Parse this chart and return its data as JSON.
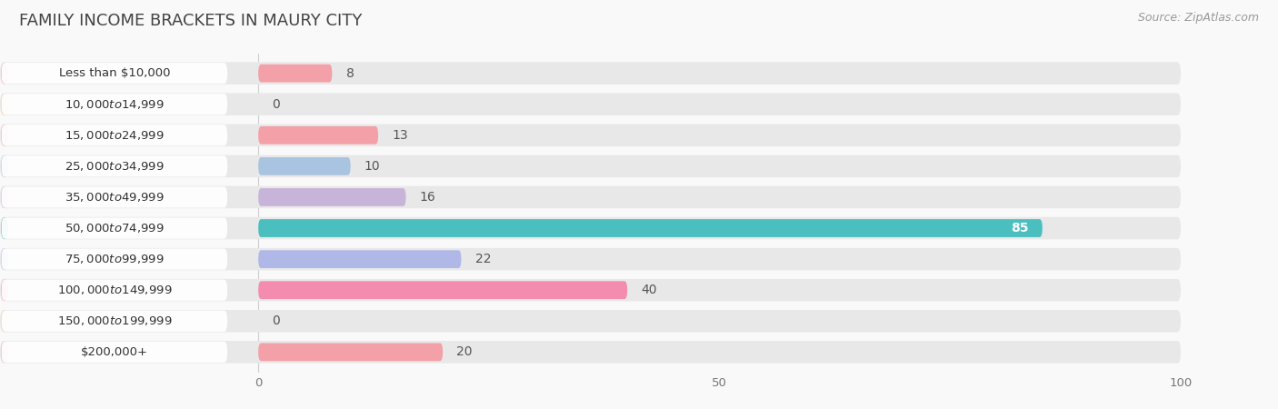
{
  "title": "Family Income Brackets in Maury City",
  "source": "Source: ZipAtlas.com",
  "categories": [
    "Less than $10,000",
    "$10,000 to $14,999",
    "$15,000 to $24,999",
    "$25,000 to $34,999",
    "$35,000 to $49,999",
    "$50,000 to $74,999",
    "$75,000 to $99,999",
    "$100,000 to $149,999",
    "$150,000 to $199,999",
    "$200,000+"
  ],
  "values": [
    8,
    0,
    13,
    10,
    16,
    85,
    22,
    40,
    0,
    20
  ],
  "bar_colors": [
    "#f4a0a8",
    "#f9c98a",
    "#f4a0a8",
    "#a8c4e0",
    "#c8b4d8",
    "#4bbfbf",
    "#b0b8e8",
    "#f48cb0",
    "#f9c98a",
    "#f4a0a8"
  ],
  "bg_track_color": "#e8e8e8",
  "xlim": [
    0,
    100
  ],
  "xticks": [
    0,
    50,
    100
  ],
  "background_color": "#f9f9f9",
  "title_fontsize": 13,
  "label_fontsize": 9.5,
  "value_fontsize": 9,
  "source_fontsize": 9
}
